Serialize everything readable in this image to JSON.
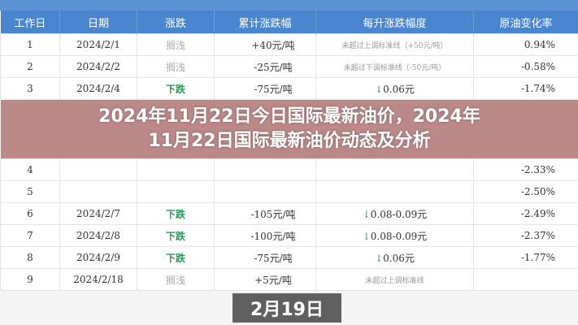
{
  "title_line1": "2024年11月22日今日国际最新油价，2024年",
  "title_line2": "11月22日国际最新油价动态及分析",
  "badge": "2月19日",
  "table": {
    "headers": [
      "工作日",
      "日期",
      "涨跌",
      "累计涨跌幅",
      "每升涨跌幅度",
      "原油变化率"
    ],
    "rows": [
      {
        "day": "1",
        "date": "2024/2/1",
        "trend": "搁浅",
        "cum": "+40元/吨",
        "per_liter": "未超过上调标准线（+50元/吨）",
        "rate": "0.94%",
        "arrow": ""
      },
      {
        "day": "2",
        "date": "2024/2/2",
        "trend": "搁浅",
        "cum": "-25元/吨",
        "per_liter": "未超过下调标准线（-50元/吨）",
        "rate": "-0.58%",
        "arrow": ""
      },
      {
        "day": "3",
        "date": "2024/2/4",
        "trend": "下跌",
        "cum": "-75元/吨",
        "per_liter": "0.06元",
        "rate": "-1.74%",
        "arrow": "↓"
      },
      {
        "day": "4",
        "date": "",
        "trend": "",
        "cum": "",
        "per_liter": "",
        "rate": "-2.33%",
        "arrow": ""
      },
      {
        "day": "5",
        "date": "",
        "trend": "",
        "cum": "",
        "per_liter": "",
        "rate": "-2.50%",
        "arrow": ""
      },
      {
        "day": "6",
        "date": "2024/2/7",
        "trend": "下跌",
        "cum": "-105元/吨",
        "per_liter": "0.08-0.09元",
        "rate": "-2.49%",
        "arrow": "↓"
      },
      {
        "day": "7",
        "date": "2024/2/8",
        "trend": "下跌",
        "cum": "-100元/吨",
        "per_liter": "0.08-0.09元",
        "rate": "-2.37%",
        "arrow": "↓"
      },
      {
        "day": "8",
        "date": "2024/2/9",
        "trend": "下跌",
        "cum": "-75元/吨",
        "per_liter": "0.06元",
        "rate": "-1.77%",
        "arrow": "↓"
      },
      {
        "day": "9",
        "date": "2024/2/18",
        "trend": "搁浅",
        "cum": "+5元/吨",
        "per_liter": "未超过上调标准线",
        "rate": "",
        "arrow": ""
      }
    ]
  },
  "colors": {
    "header": "#4a86cf",
    "down": "#2a9a5a",
    "overlay": "#b27676"
  }
}
